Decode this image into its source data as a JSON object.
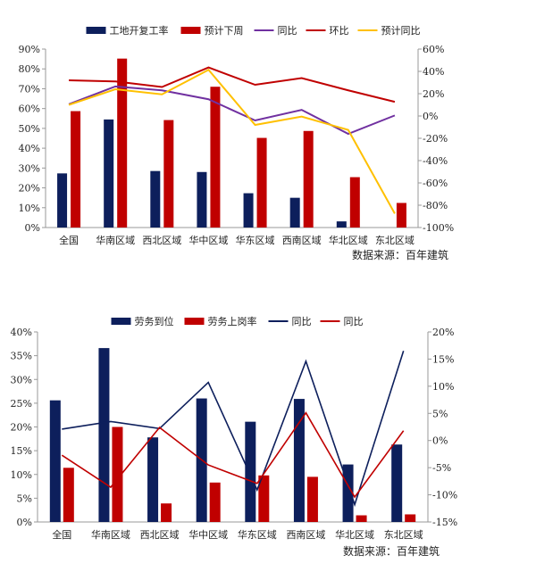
{
  "chart_data": [
    {
      "type": "bar",
      "categories": [
        "全国",
        "华南区域",
        "西北区域",
        "华中区域",
        "华东区域",
        "西南区域",
        "华北区域",
        "东北区域"
      ],
      "ylim": [
        0,
        90
      ],
      "yticks": [
        0,
        10,
        20,
        30,
        40,
        50,
        60,
        70,
        80,
        90
      ],
      "y2lim": [
        -100,
        60
      ],
      "y2ticks": [
        -100,
        -80,
        -60,
        -40,
        -20,
        0,
        20,
        40,
        60
      ],
      "legend": "top",
      "source": "数据来源：百年建筑",
      "series": [
        {
          "name": "工地开复工率",
          "kind": "bar",
          "axis": "left",
          "color": "#0d1f5c",
          "values": [
            27.3,
            54.5,
            28.5,
            28,
            17.3,
            15,
            3.1,
            0
          ]
        },
        {
          "name": "预计下周",
          "kind": "bar",
          "axis": "left",
          "color": "#c00000",
          "values": [
            58.7,
            85.2,
            54.2,
            71,
            45.2,
            48.7,
            25.4,
            12.4
          ]
        },
        {
          "name": "同比",
          "kind": "line",
          "axis": "right",
          "color": "#7030a0",
          "values": [
            10.6,
            26.5,
            23,
            15,
            -4,
            5.5,
            -16,
            0.5
          ]
        },
        {
          "name": "环比",
          "kind": "line",
          "axis": "right",
          "color": "#c00000",
          "values": [
            32,
            31,
            26,
            43.5,
            28,
            34,
            23,
            12.7
          ]
        },
        {
          "name": "预计同比",
          "kind": "line",
          "axis": "right",
          "color": "#ffc000",
          "values": [
            10,
            24,
            19.4,
            41.4,
            -8,
            -0.5,
            -12.5,
            -87.5
          ]
        }
      ]
    },
    {
      "type": "bar",
      "categories": [
        "全国",
        "华南区域",
        "西北区域",
        "华中区域",
        "华东区域",
        "西南区域",
        "华北区域",
        "东北区域"
      ],
      "ylim": [
        0,
        40
      ],
      "yticks": [
        0,
        5,
        10,
        15,
        20,
        25,
        30,
        35,
        40
      ],
      "y2lim": [
        -15,
        20
      ],
      "y2ticks": [
        -15,
        -10,
        -5,
        0,
        5,
        10,
        15,
        20
      ],
      "legend": "top",
      "source": "数据来源：百年建筑",
      "series": [
        {
          "name": "劳务到位",
          "kind": "bar",
          "axis": "left",
          "color": "#0d1f5c",
          "values": [
            25.6,
            36.6,
            17.8,
            26,
            21.1,
            25.9,
            12.1,
            16.3
          ]
        },
        {
          "name": "劳务上岗率",
          "kind": "bar",
          "axis": "left",
          "color": "#c00000",
          "values": [
            11.4,
            20,
            3.9,
            8.3,
            9.8,
            9.5,
            1.4,
            1.6
          ]
        },
        {
          "name": "同比",
          "kind": "line",
          "axis": "right",
          "color": "#0d1f5c",
          "values": [
            2.1,
            3.5,
            2.2,
            10.7,
            -9.1,
            14.6,
            -11.8,
            16.5
          ]
        },
        {
          "name": "同比",
          "kind": "line",
          "axis": "right",
          "color": "#c00000",
          "values": [
            -2.7,
            -8.6,
            2.4,
            -4.5,
            -7.9,
            5.1,
            -10.4,
            1.8
          ]
        }
      ]
    }
  ]
}
